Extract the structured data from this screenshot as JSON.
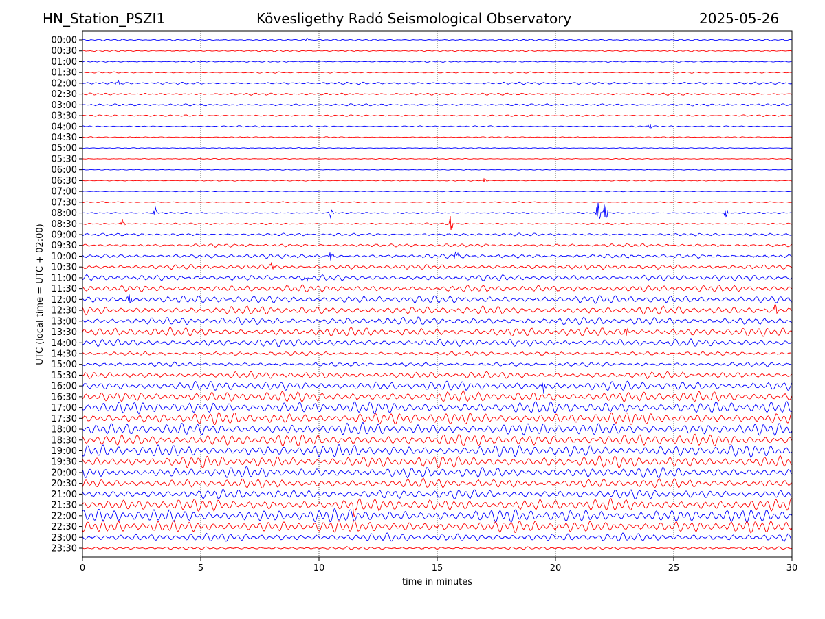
{
  "header": {
    "station": "HN_Station_PSZI1",
    "observatory": "Kövesligethy Radó Seismological Observatory",
    "date": "2025-05-26"
  },
  "chart_data": {
    "type": "line",
    "title": "Kövesligethy Radó Seismological Observatory",
    "xlabel": "time in minutes",
    "ylabel": "UTC (local time = UTC + 02:00)",
    "xlim": [
      0,
      30
    ],
    "x_ticks": [
      "0",
      "5",
      "10",
      "15",
      "20",
      "25",
      "30"
    ],
    "x_tick_values": [
      0,
      5,
      10,
      15,
      20,
      25,
      30
    ],
    "grid": "vertical dotted at 5-minute intervals",
    "series_colors": [
      "#0000ff",
      "#ff0000"
    ],
    "rows": [
      "00:00",
      "00:30",
      "01:00",
      "01:30",
      "02:00",
      "02:30",
      "03:00",
      "03:30",
      "04:00",
      "04:30",
      "05:00",
      "05:30",
      "06:00",
      "06:30",
      "07:00",
      "07:30",
      "08:00",
      "08:30",
      "09:00",
      "09:30",
      "10:00",
      "10:30",
      "11:00",
      "11:30",
      "12:00",
      "12:30",
      "13:00",
      "13:30",
      "14:00",
      "14:30",
      "15:00",
      "15:30",
      "16:00",
      "16:30",
      "17:00",
      "17:30",
      "18:00",
      "18:30",
      "19:00",
      "19:30",
      "20:00",
      "20:30",
      "21:00",
      "21:30",
      "22:00",
      "22:30",
      "23:00",
      "23:30"
    ],
    "relative_noise_amplitude": [
      0.5,
      0.5,
      0.5,
      0.5,
      0.8,
      0.8,
      0.8,
      0.6,
      0.5,
      0.4,
      0.3,
      0.3,
      0.3,
      0.4,
      0.3,
      0.4,
      0.5,
      0.6,
      1,
      1.2,
      1.5,
      1.8,
      2.2,
      2.5,
      2.8,
      3,
      2.8,
      3.2,
      2.8,
      1.5,
      1.5,
      2.5,
      3.5,
      4,
      4.5,
      4.5,
      4.5,
      4.5,
      4.5,
      4.5,
      4,
      3.5,
      3.5,
      4.5,
      5,
      4.5,
      3,
      1
    ],
    "events": [
      {
        "row": 0,
        "minute": 9.5,
        "amplitude": 2
      },
      {
        "row": 4,
        "minute": 1.5,
        "amplitude": 3
      },
      {
        "row": 8,
        "minute": 24,
        "amplitude": 2.5
      },
      {
        "row": 13,
        "minute": 17,
        "amplitude": 3
      },
      {
        "row": 16,
        "minute": 3.1,
        "amplitude": 6
      },
      {
        "row": 16,
        "minute": 10.5,
        "amplitude": 5
      },
      {
        "row": 16,
        "minute": 21.8,
        "amplitude": 15
      },
      {
        "row": 16,
        "minute": 22.1,
        "amplitude": 12
      },
      {
        "row": 16,
        "minute": 27.2,
        "amplitude": 4
      },
      {
        "row": 17,
        "minute": 1.7,
        "amplitude": 4
      },
      {
        "row": 17,
        "minute": 15.6,
        "amplitude": 10
      },
      {
        "row": 20,
        "minute": 10.5,
        "amplitude": 5
      },
      {
        "row": 20,
        "minute": 15.8,
        "amplitude": 5
      },
      {
        "row": 21,
        "minute": 8,
        "amplitude": 5
      },
      {
        "row": 22,
        "minute": 9.5,
        "amplitude": 6
      },
      {
        "row": 24,
        "minute": 2,
        "amplitude": 5
      },
      {
        "row": 25,
        "minute": 29.3,
        "amplitude": 6
      },
      {
        "row": 27,
        "minute": 23,
        "amplitude": 6
      },
      {
        "row": 32,
        "minute": 19.5,
        "amplitude": 7
      },
      {
        "row": 43,
        "minute": 11.5,
        "amplitude": 8
      }
    ]
  }
}
